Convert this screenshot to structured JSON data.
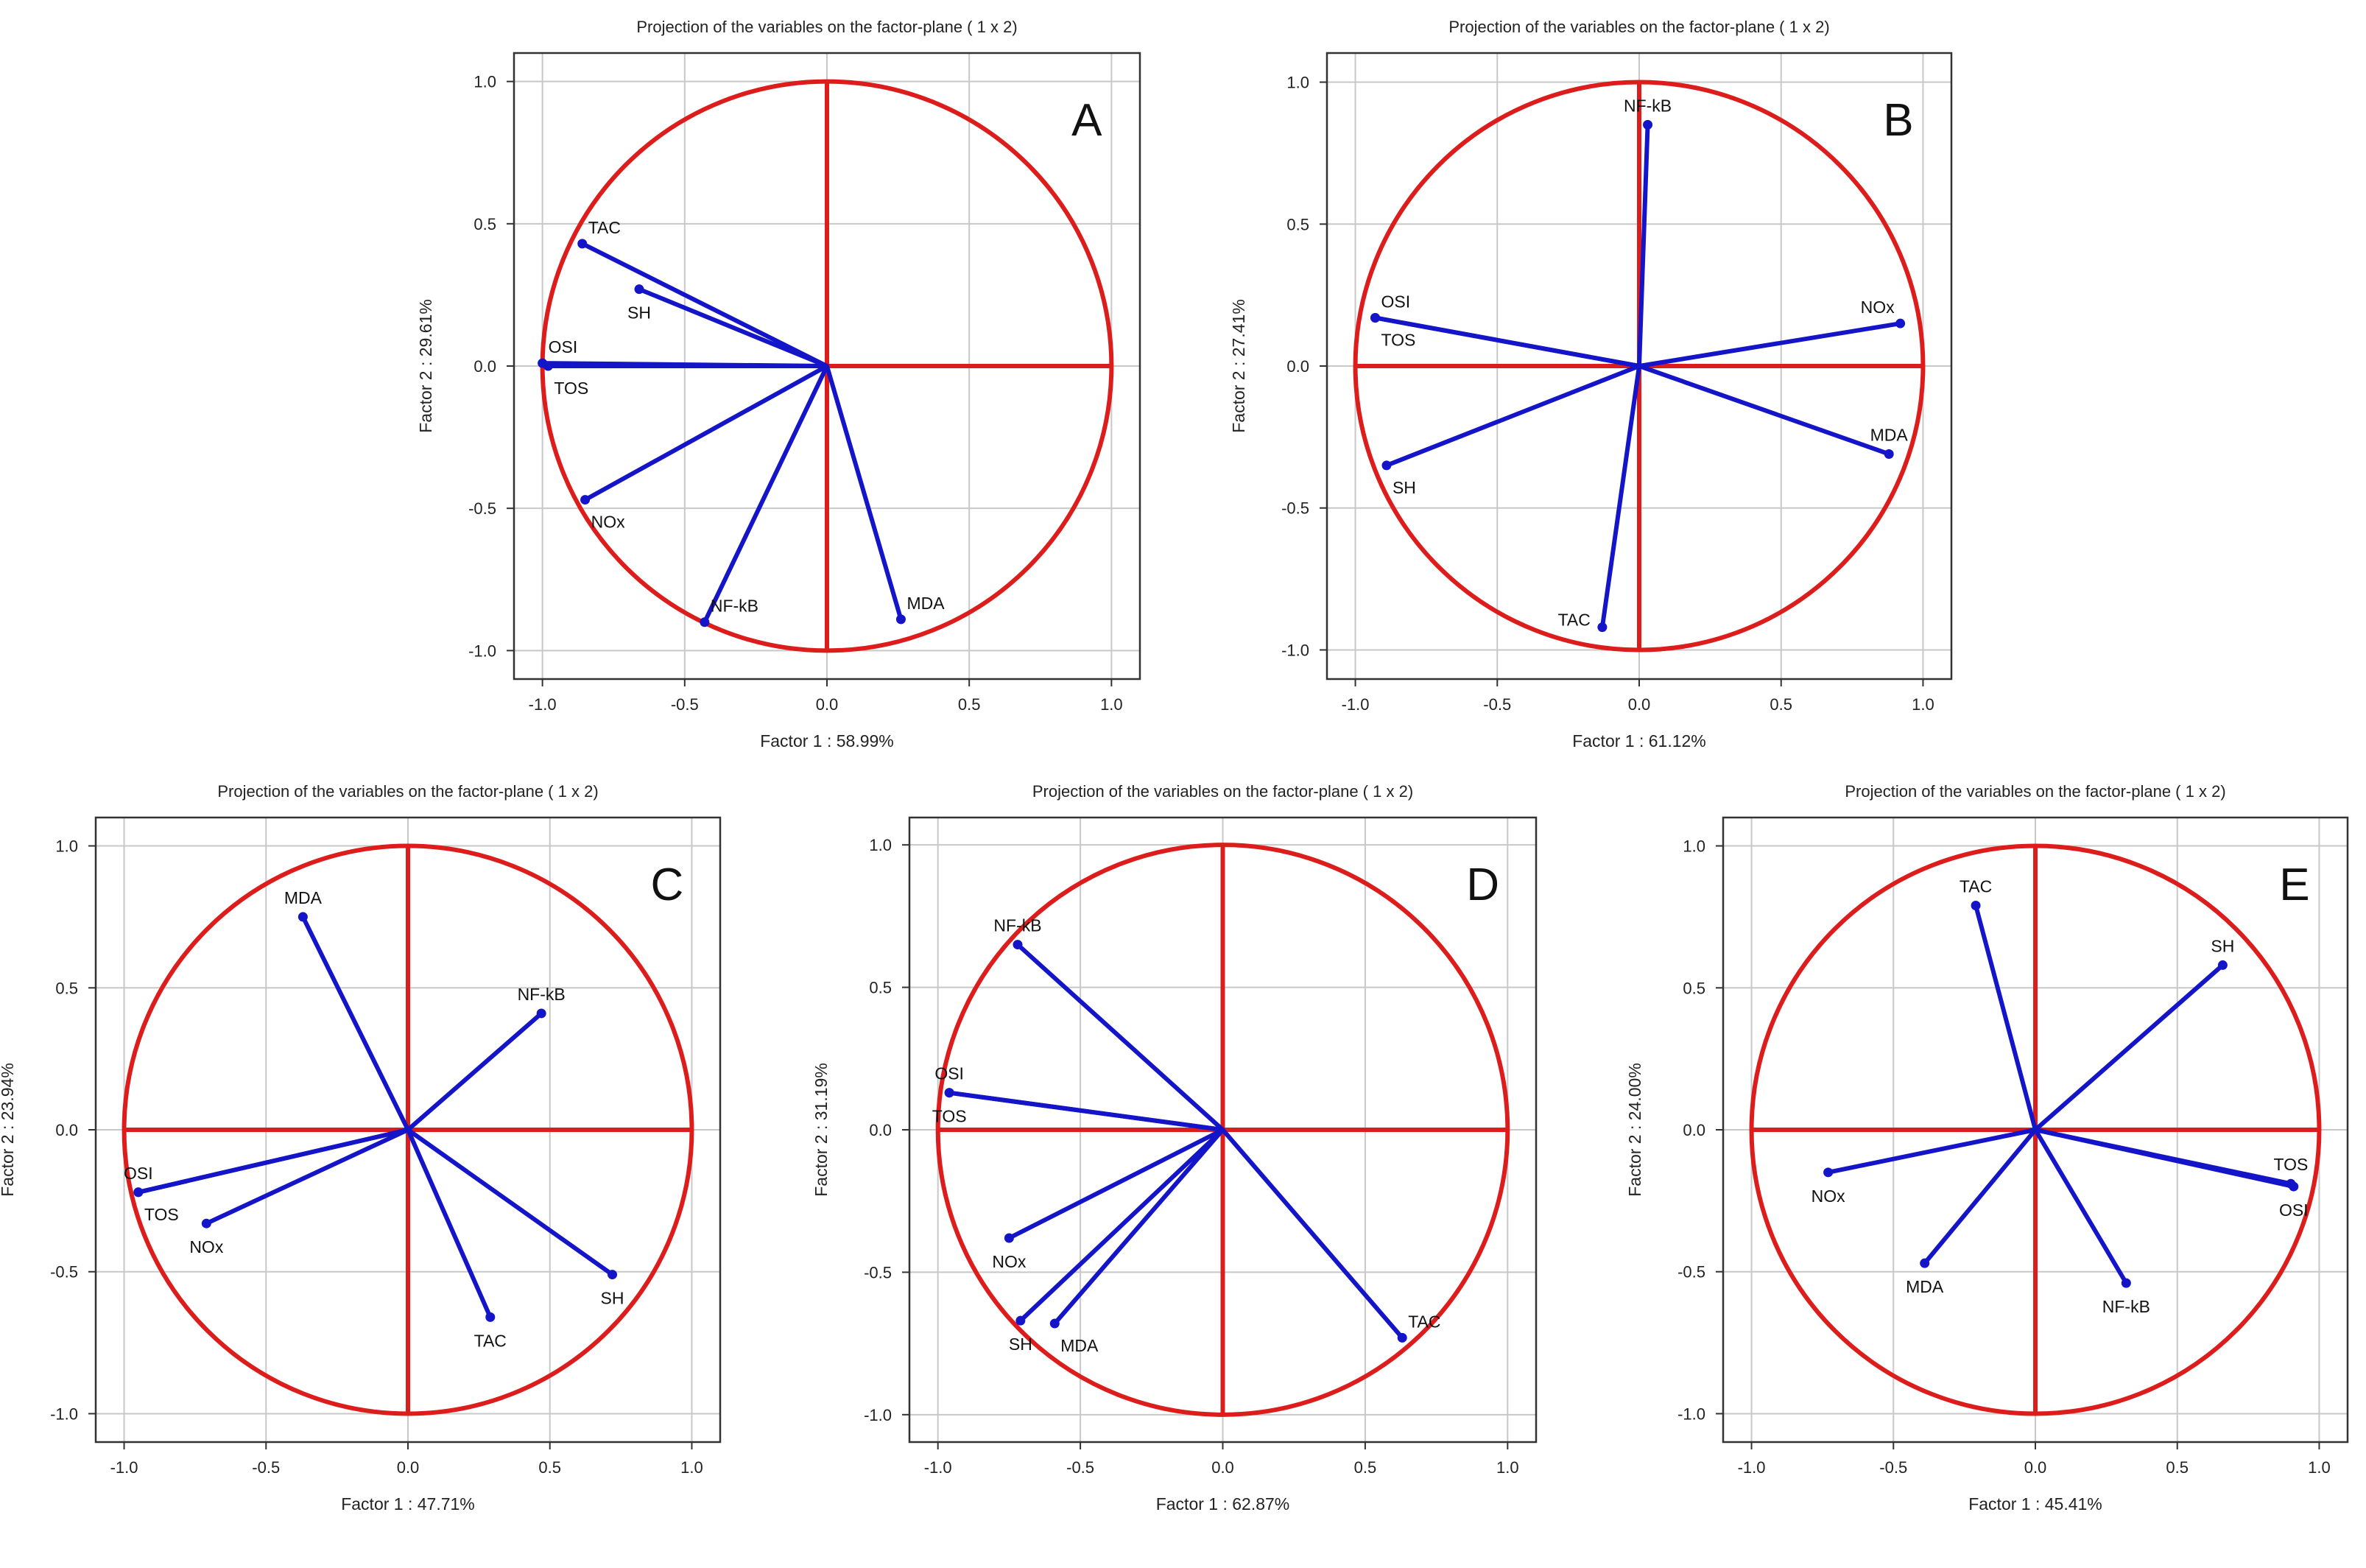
{
  "colors": {
    "circle": "#dd1c1c",
    "vector": "#1414c8",
    "grid": "#c8c8c8",
    "frame": "#333333",
    "text": "#222222"
  },
  "tick_labels": [
    "-1.0",
    "-0.5",
    "0.0",
    "0.5",
    "1.0"
  ],
  "chart_data": [
    {
      "type": "scatter",
      "subtype": "pca-correlation-circle",
      "panel_label": "A",
      "title": "Projection of the variables on the factor-plane (  1 x  2)",
      "xlabel": "Factor 1 : 58.99%",
      "ylabel": "Factor 2 : 29.61%",
      "xlim": [
        -1.0,
        1.0
      ],
      "ylim": [
        -1.0,
        1.0
      ],
      "xticks": [
        -1.0,
        -0.5,
        0.0,
        0.5,
        1.0
      ],
      "yticks": [
        -1.0,
        -0.5,
        0.0,
        0.5,
        1.0
      ],
      "grid": true,
      "variables": [
        {
          "name": "TAC",
          "x": -0.86,
          "y": 0.43,
          "label_pos": "above-right"
        },
        {
          "name": "SH",
          "x": -0.66,
          "y": 0.27,
          "label_pos": "below"
        },
        {
          "name": "OSI",
          "x": -1.0,
          "y": 0.01,
          "label_pos": "above-right"
        },
        {
          "name": "TOS",
          "x": -0.98,
          "y": 0.0,
          "label_pos": "below-right"
        },
        {
          "name": "NOx",
          "x": -0.85,
          "y": -0.47,
          "label_pos": "below-right"
        },
        {
          "name": "NF-kB",
          "x": -0.43,
          "y": -0.9,
          "label_pos": "above-right"
        },
        {
          "name": "MDA",
          "x": 0.26,
          "y": -0.89,
          "label_pos": "above-right"
        }
      ]
    },
    {
      "type": "scatter",
      "subtype": "pca-correlation-circle",
      "panel_label": "B",
      "title": "Projection of the variables on the factor-plane (  1 x  2)",
      "xlabel": "Factor 1 : 61.12%",
      "ylabel": "Factor 2 : 27.41%",
      "xlim": [
        -1.0,
        1.0
      ],
      "ylim": [
        -1.0,
        1.0
      ],
      "xticks": [
        -1.0,
        -0.5,
        0.0,
        0.5,
        1.0
      ],
      "yticks": [
        -1.0,
        -0.5,
        0.0,
        0.5,
        1.0
      ],
      "grid": true,
      "variables": [
        {
          "name": "NF-kB",
          "x": 0.03,
          "y": 0.85,
          "label_pos": "above"
        },
        {
          "name": "OSI",
          "x": -0.93,
          "y": 0.17,
          "label_pos": "above-right"
        },
        {
          "name": "TOS",
          "x": -0.93,
          "y": 0.17,
          "label_pos": "below-right"
        },
        {
          "name": "NOx",
          "x": 0.92,
          "y": 0.15,
          "label_pos": "above-left"
        },
        {
          "name": "MDA",
          "x": 0.88,
          "y": -0.31,
          "label_pos": "above"
        },
        {
          "name": "SH",
          "x": -0.89,
          "y": -0.35,
          "label_pos": "below-right"
        },
        {
          "name": "TAC",
          "x": -0.13,
          "y": -0.92,
          "label_pos": "left"
        }
      ]
    },
    {
      "type": "scatter",
      "subtype": "pca-correlation-circle",
      "panel_label": "C",
      "title": "Projection of the variables on the factor-plane (  1 x  2)",
      "xlabel": "Factor 1 : 47.71%",
      "ylabel": "Factor 2 : 23.94%",
      "xlim": [
        -1.0,
        1.0
      ],
      "ylim": [
        -1.0,
        1.0
      ],
      "xticks": [
        -1.0,
        -0.5,
        0.0,
        0.5,
        1.0
      ],
      "yticks": [
        -1.0,
        -0.5,
        0.0,
        0.5,
        1.0
      ],
      "grid": true,
      "variables": [
        {
          "name": "MDA",
          "x": -0.37,
          "y": 0.75,
          "label_pos": "above"
        },
        {
          "name": "NF-kB",
          "x": 0.47,
          "y": 0.41,
          "label_pos": "above"
        },
        {
          "name": "OSI",
          "x": -0.95,
          "y": -0.22,
          "label_pos": "above"
        },
        {
          "name": "TOS",
          "x": -0.95,
          "y": -0.22,
          "label_pos": "below-right"
        },
        {
          "name": "NOx",
          "x": -0.71,
          "y": -0.33,
          "label_pos": "below"
        },
        {
          "name": "SH",
          "x": 0.72,
          "y": -0.51,
          "label_pos": "below"
        },
        {
          "name": "TAC",
          "x": 0.29,
          "y": -0.66,
          "label_pos": "below"
        }
      ]
    },
    {
      "type": "scatter",
      "subtype": "pca-correlation-circle",
      "panel_label": "D",
      "title": "Projection of the variables on the factor-plane (  1 x  2)",
      "xlabel": "Factor 1 : 62.87%",
      "ylabel": "Factor 2 : 31.19%",
      "xlim": [
        -1.0,
        1.0
      ],
      "ylim": [
        -1.0,
        1.0
      ],
      "xticks": [
        -1.0,
        -0.5,
        0.0,
        0.5,
        1.0
      ],
      "yticks": [
        -1.0,
        -0.5,
        0.0,
        0.5,
        1.0
      ],
      "grid": true,
      "variables": [
        {
          "name": "NF-kB",
          "x": -0.72,
          "y": 0.65,
          "label_pos": "above"
        },
        {
          "name": "OSI",
          "x": -0.96,
          "y": 0.13,
          "label_pos": "above"
        },
        {
          "name": "TOS",
          "x": -0.96,
          "y": 0.13,
          "label_pos": "below"
        },
        {
          "name": "NOx",
          "x": -0.75,
          "y": -0.38,
          "label_pos": "below"
        },
        {
          "name": "SH",
          "x": -0.71,
          "y": -0.67,
          "label_pos": "below"
        },
        {
          "name": "MDA",
          "x": -0.59,
          "y": -0.68,
          "label_pos": "below-right"
        },
        {
          "name": "TAC",
          "x": 0.63,
          "y": -0.73,
          "label_pos": "above-right"
        }
      ]
    },
    {
      "type": "scatter",
      "subtype": "pca-correlation-circle",
      "panel_label": "E",
      "title": "Projection of the variables on the factor-plane (  1 x  2)",
      "xlabel": "Factor 1 : 45.41%",
      "ylabel": "Factor 2 : 24.00%",
      "xlim": [
        -1.0,
        1.0
      ],
      "ylim": [
        -1.0,
        1.0
      ],
      "xticks": [
        -1.0,
        -0.5,
        0.0,
        0.5,
        1.0
      ],
      "yticks": [
        -1.0,
        -0.5,
        0.0,
        0.5,
        1.0
      ],
      "grid": true,
      "variables": [
        {
          "name": "TAC",
          "x": -0.21,
          "y": 0.79,
          "label_pos": "above"
        },
        {
          "name": "SH",
          "x": 0.66,
          "y": 0.58,
          "label_pos": "above"
        },
        {
          "name": "TOS",
          "x": 0.9,
          "y": -0.19,
          "label_pos": "above"
        },
        {
          "name": "OSI",
          "x": 0.91,
          "y": -0.2,
          "label_pos": "below"
        },
        {
          "name": "NOx",
          "x": -0.73,
          "y": -0.15,
          "label_pos": "below"
        },
        {
          "name": "MDA",
          "x": -0.39,
          "y": -0.47,
          "label_pos": "below"
        },
        {
          "name": "NF-kB",
          "x": 0.32,
          "y": -0.54,
          "label_pos": "below"
        }
      ]
    }
  ]
}
